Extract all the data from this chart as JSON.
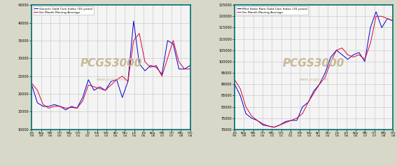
{
  "left": {
    "legend1": "Generic Gold Coin Index (10 years)",
    "legend2": "Six Month Moving Average",
    "ylim": [
      10000,
      45000
    ],
    "yticks": [
      10000,
      15000,
      20000,
      25000,
      30000,
      35000,
      40000,
      45000
    ],
    "xtick_labels_line1": [
      "Jan",
      "Aug",
      "Mar",
      "Oct",
      "May",
      "Dec",
      "Jul",
      "Feb",
      "Sep",
      "Apr",
      "Nov",
      "Jun",
      "Jan",
      "Aug",
      "Mar",
      "Oct",
      "May",
      "Dec"
    ],
    "xtick_labels_line2": [
      "'99",
      "'99",
      "'00",
      "'00",
      "'01",
      "'01",
      "'02",
      "'03",
      "'03",
      "'04",
      "'04",
      "'05",
      "'06",
      "'06",
      "'07",
      "'07",
      "'08",
      "'08"
    ],
    "blue_data": [
      22500,
      17500,
      16500,
      16500,
      17000,
      16500,
      15500,
      16500,
      16000,
      19000,
      24000,
      21000,
      22000,
      21000,
      23500,
      24000,
      19000,
      23500,
      40500,
      28500,
      26500,
      28000,
      27500,
      25500,
      35000,
      34000,
      27000,
      27000,
      28000
    ],
    "red_data": [
      23000,
      21000,
      17000,
      16000,
      16500,
      16500,
      16000,
      16200,
      16000,
      18000,
      22500,
      22000,
      21500,
      21000,
      22500,
      24000,
      25000,
      23500,
      35000,
      37000,
      29000,
      27500,
      28000,
      25000,
      30000,
      35000,
      29000,
      27000,
      27000
    ]
  },
  "right": {
    "legend1": "Mint State Rare Gold Coin Index (10 years)",
    "legend2": "Six Month Moving Average",
    "ylim": [
      70000,
      125000
    ],
    "yticks": [
      70000,
      75000,
      80000,
      85000,
      90000,
      95000,
      100000,
      105000,
      110000,
      115000,
      120000,
      125000
    ],
    "xtick_labels_line1": [
      "Jan",
      "Aug",
      "Mar",
      "Oct",
      "May",
      "Dec",
      "Jul",
      "Feb",
      "Sep",
      "Apr",
      "Nov",
      "Jun",
      "Jan",
      "Aug",
      "Mar",
      "Oct",
      "May",
      "Dec"
    ],
    "xtick_labels_line2": [
      "'99",
      "'99",
      "'00",
      "'00",
      "'01",
      "'01",
      "'02",
      "'03",
      "'03",
      "'04",
      "'04",
      "'05",
      "'06",
      "'06",
      "'07",
      "'07",
      "'08",
      "'08"
    ],
    "blue_data": [
      90000,
      85000,
      77000,
      75000,
      74000,
      72000,
      71500,
      71000,
      72000,
      73500,
      74000,
      74000,
      80000,
      82000,
      87000,
      90000,
      95000,
      102000,
      105000,
      103000,
      101000,
      103000,
      104000,
      100000,
      115000,
      122000,
      115000,
      119000,
      118000
    ],
    "red_data": [
      92000,
      88000,
      80000,
      76000,
      74000,
      72500,
      71500,
      71000,
      72000,
      73000,
      74000,
      75000,
      77000,
      82000,
      86000,
      90000,
      93000,
      100000,
      105000,
      106000,
      103000,
      102000,
      103000,
      101000,
      108000,
      120000,
      120000,
      119000,
      118000
    ]
  },
  "bg_color": "#d8d8c8",
  "plot_bg": "#f4f4f4",
  "border_color": "#007070",
  "grid_color": "#c0c0c0",
  "blue_color": "#0000cc",
  "red_color": "#dd0033",
  "watermark_color": "#c8b898",
  "watermark_text": "PCGS3000",
  "watermark_url": "www.pcgs.com"
}
